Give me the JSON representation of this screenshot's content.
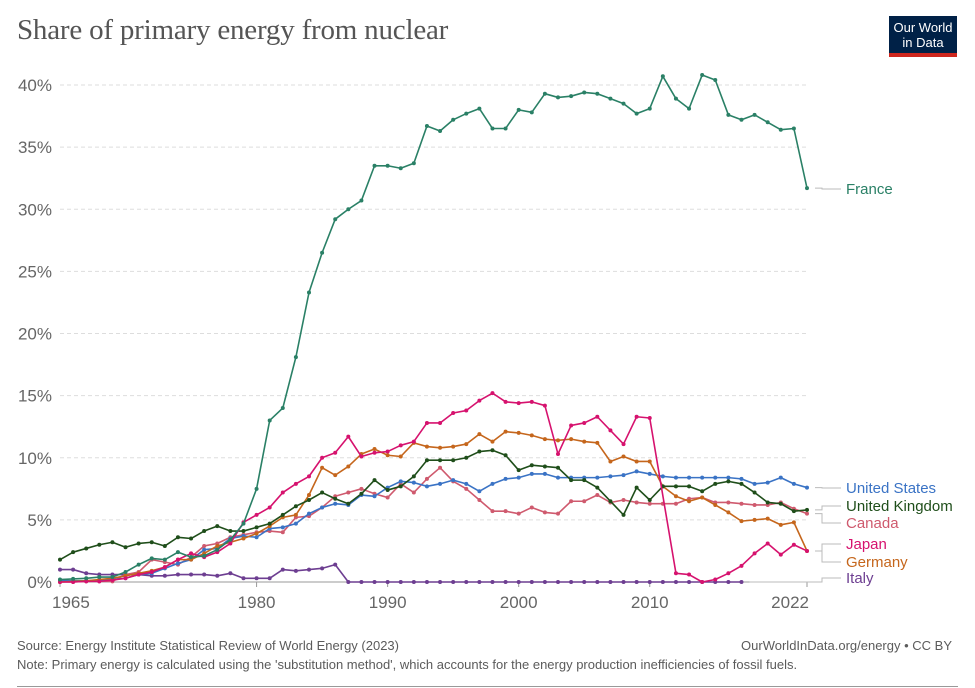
{
  "header": {
    "title": "Share of primary energy from nuclear",
    "logo_line1": "Our World",
    "logo_line2": "in Data"
  },
  "footer": {
    "source": "Source: Energy Institute Statistical Review of World Energy (2023)",
    "credit": "OurWorldInData.org/energy • CC BY",
    "note": "Note: Primary energy is calculated using the 'substitution method', which accounts for the energy production inefficiencies of fossil fuels."
  },
  "chart_data": {
    "type": "line",
    "title": "Share of primary energy from nuclear",
    "xlabel": "",
    "ylabel": "",
    "x": [
      1965,
      1966,
      1967,
      1968,
      1969,
      1970,
      1971,
      1972,
      1973,
      1974,
      1975,
      1976,
      1977,
      1978,
      1979,
      1980,
      1981,
      1982,
      1983,
      1984,
      1985,
      1986,
      1987,
      1988,
      1989,
      1990,
      1991,
      1992,
      1993,
      1994,
      1995,
      1996,
      1997,
      1998,
      1999,
      2000,
      2001,
      2002,
      2003,
      2004,
      2005,
      2006,
      2007,
      2008,
      2009,
      2010,
      2011,
      2012,
      2013,
      2014,
      2015,
      2016,
      2017,
      2018,
      2019,
      2020,
      2021,
      2022
    ],
    "xlim": [
      1965,
      2022
    ],
    "ylim": [
      0,
      40
    ],
    "x_ticks": [
      "1965",
      "1980",
      "1990",
      "2000",
      "2010",
      "2022"
    ],
    "x_tick_values": [
      1965,
      1980,
      1990,
      2000,
      2010,
      2022
    ],
    "y_ticks": [
      "0%",
      "5%",
      "10%",
      "15%",
      "20%",
      "25%",
      "30%",
      "35%",
      "40%"
    ],
    "y_tick_values": [
      0,
      5,
      10,
      15,
      20,
      25,
      30,
      35,
      40
    ],
    "grid": "horizontal-dashed",
    "legend": "right (labels at line ends)",
    "series": [
      {
        "name": "France",
        "color": "#2a8066",
        "label_value": 31.7,
        "values": [
          0.2,
          0.25,
          0.3,
          0.4,
          0.4,
          0.8,
          1.4,
          1.9,
          1.8,
          2.4,
          2.0,
          2.1,
          2.6,
          3.4,
          4.7,
          7.5,
          13.0,
          14.0,
          18.1,
          23.3,
          26.5,
          29.2,
          30.0,
          30.7,
          33.5,
          33.5,
          33.3,
          33.7,
          36.7,
          36.3,
          37.2,
          37.7,
          38.1,
          36.5,
          36.5,
          38.0,
          37.8,
          39.3,
          39.0,
          39.1,
          39.4,
          39.3,
          38.9,
          38.5,
          37.7,
          38.1,
          40.7,
          38.9,
          38.1,
          40.8,
          40.4,
          37.6,
          37.2,
          37.6,
          37.0,
          36.4,
          36.5,
          31.7
        ]
      },
      {
        "name": "United States",
        "color": "#3a73c5",
        "label_value": 7.6,
        "values": [
          0.1,
          0.1,
          0.1,
          0.15,
          0.2,
          0.3,
          0.6,
          0.7,
          1.1,
          1.5,
          1.8,
          2.6,
          2.7,
          3.5,
          3.7,
          3.6,
          4.3,
          4.4,
          4.7,
          5.5,
          6.0,
          6.3,
          6.2,
          7.0,
          6.9,
          7.6,
          8.1,
          8.0,
          7.7,
          7.9,
          8.2,
          7.9,
          7.3,
          7.9,
          8.3,
          8.4,
          8.7,
          8.7,
          8.4,
          8.4,
          8.4,
          8.4,
          8.5,
          8.6,
          8.9,
          8.7,
          8.5,
          8.4,
          8.4,
          8.4,
          8.4,
          8.4,
          8.3,
          7.9,
          8.0,
          8.4,
          7.9,
          7.6
        ]
      },
      {
        "name": "United Kingdom",
        "color": "#1f4e1a",
        "label_value": 5.8,
        "values": [
          1.8,
          2.4,
          2.7,
          3.0,
          3.2,
          2.8,
          3.1,
          3.2,
          2.9,
          3.6,
          3.5,
          4.1,
          4.5,
          4.1,
          4.1,
          4.4,
          4.7,
          5.4,
          6.1,
          6.6,
          7.2,
          6.7,
          6.3,
          7.1,
          8.2,
          7.4,
          7.7,
          8.5,
          9.8,
          9.8,
          9.8,
          10.0,
          10.5,
          10.6,
          10.2,
          9.0,
          9.4,
          9.3,
          9.2,
          8.2,
          8.2,
          7.6,
          6.5,
          5.4,
          7.6,
          6.6,
          7.7,
          7.7,
          7.7,
          7.3,
          7.9,
          8.1,
          7.9,
          7.2,
          6.4,
          6.3,
          5.7,
          5.8
        ]
      },
      {
        "name": "Canada",
        "color": "#cf5a6e",
        "label_value": 5.5,
        "values": [
          0.0,
          0.0,
          0.05,
          0.05,
          0.05,
          0.6,
          0.8,
          1.8,
          1.6,
          1.4,
          2.0,
          2.9,
          3.1,
          3.6,
          3.8,
          4.0,
          4.1,
          4.0,
          5.2,
          5.3,
          6.0,
          6.9,
          7.2,
          7.5,
          7.1,
          6.8,
          7.9,
          7.2,
          8.3,
          9.2,
          8.1,
          7.5,
          6.6,
          5.7,
          5.7,
          5.5,
          6.0,
          5.6,
          5.5,
          6.5,
          6.5,
          7.0,
          6.4,
          6.6,
          6.4,
          6.3,
          6.3,
          6.3,
          6.7,
          6.8,
          6.4,
          6.4,
          6.3,
          6.2,
          6.2,
          6.4,
          5.9,
          5.5
        ]
      },
      {
        "name": "Japan",
        "color": "#d6126e",
        "label_value": 2.5,
        "values": [
          0.0,
          0.0,
          0.05,
          0.05,
          0.15,
          0.3,
          0.6,
          0.8,
          1.2,
          1.8,
          2.3,
          2.0,
          2.4,
          3.1,
          4.8,
          5.4,
          6.0,
          7.2,
          7.9,
          8.5,
          10.0,
          10.4,
          11.7,
          10.1,
          10.4,
          10.5,
          11.0,
          11.3,
          12.8,
          12.8,
          13.6,
          13.8,
          14.6,
          15.2,
          14.5,
          14.4,
          14.5,
          14.2,
          10.3,
          12.6,
          12.8,
          13.3,
          12.2,
          11.1,
          13.3,
          13.2,
          null,
          0.7,
          0.6,
          0.0,
          0.2,
          0.7,
          1.3,
          2.3,
          3.1,
          2.2,
          3.0,
          2.5
        ]
      },
      {
        "name": "Germany",
        "color": "#c5661c",
        "label_value": 2.5,
        "values": [
          0.0,
          0.05,
          0.1,
          0.2,
          0.3,
          0.5,
          0.7,
          0.9,
          1.2,
          1.8,
          1.8,
          2.3,
          2.9,
          3.2,
          3.5,
          3.9,
          4.5,
          5.2,
          5.4,
          7.0,
          9.2,
          8.6,
          9.3,
          10.3,
          10.7,
          10.2,
          10.1,
          11.2,
          10.9,
          10.8,
          10.9,
          11.1,
          11.9,
          11.3,
          12.1,
          12.0,
          11.8,
          11.5,
          11.4,
          11.5,
          11.3,
          11.2,
          9.7,
          10.1,
          9.7,
          9.7,
          7.7,
          6.9,
          6.5,
          6.8,
          6.2,
          5.6,
          4.9,
          5.0,
          5.1,
          4.6,
          4.8,
          2.5
        ]
      },
      {
        "name": "Italy",
        "color": "#6d3e91",
        "label_value": 0.0,
        "values": [
          1.0,
          1.0,
          0.7,
          0.6,
          0.6,
          0.6,
          0.6,
          0.5,
          0.5,
          0.6,
          0.6,
          0.6,
          0.5,
          0.7,
          0.3,
          0.3,
          0.3,
          1.0,
          0.9,
          1.0,
          1.1,
          1.4,
          0.0,
          0.0,
          0.0,
          0.0,
          0.0,
          0.0,
          0.0,
          0.0,
          0.0,
          0.0,
          0.0,
          0.0,
          0.0,
          0.0,
          0.0,
          0.0,
          0.0,
          0.0,
          0.0,
          0.0,
          0.0,
          0.0,
          0.0,
          0.0,
          0.0,
          0.0,
          0.0,
          0.0,
          0.0,
          0.0,
          0.0,
          null,
          null,
          null,
          null,
          null
        ]
      }
    ]
  }
}
